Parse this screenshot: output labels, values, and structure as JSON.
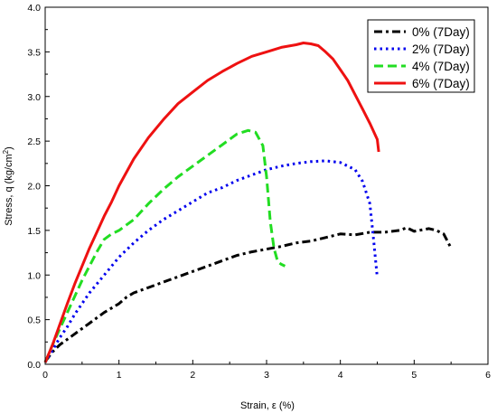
{
  "chart_data": {
    "type": "line",
    "xlabel": "Strain, ε (%)",
    "ylabel_main": "Stress, q (kg/cm",
    "ylabel_sup": "2",
    "ylabel_tail": ")",
    "xlim": [
      0,
      6
    ],
    "ylim": [
      0,
      4.0
    ],
    "x_ticks": [
      0,
      1,
      2,
      3,
      4,
      5,
      6
    ],
    "x_tick_labels": [
      "0",
      "1",
      "2",
      "3",
      "4",
      "5",
      "6"
    ],
    "y_ticks": [
      0,
      0.5,
      1.0,
      1.5,
      2.0,
      2.5,
      3.0,
      3.5,
      4.0
    ],
    "y_tick_labels": [
      "0.0",
      "0.5",
      "1.0",
      "1.5",
      "2.0",
      "2.5",
      "3.0",
      "3.5",
      "4.0"
    ],
    "grid": false,
    "legend_position": "top-right",
    "series": [
      {
        "name": "0% (7Day)",
        "color": "#000000",
        "style": "dash-dot",
        "x": [
          0,
          0.1,
          0.2,
          0.3,
          0.4,
          0.5,
          0.6,
          0.7,
          0.8,
          0.9,
          1.0,
          1.1,
          1.2,
          1.4,
          1.6,
          1.8,
          2.0,
          2.2,
          2.4,
          2.6,
          2.8,
          3.0,
          3.2,
          3.4,
          3.6,
          3.8,
          4.0,
          4.2,
          4.4,
          4.6,
          4.8,
          4.9,
          5.0,
          5.2,
          5.3,
          5.4,
          5.5
        ],
        "y": [
          0.03,
          0.14,
          0.22,
          0.28,
          0.34,
          0.4,
          0.46,
          0.52,
          0.58,
          0.63,
          0.68,
          0.75,
          0.8,
          0.86,
          0.92,
          0.98,
          1.04,
          1.1,
          1.16,
          1.22,
          1.26,
          1.29,
          1.32,
          1.36,
          1.38,
          1.42,
          1.46,
          1.45,
          1.48,
          1.48,
          1.5,
          1.53,
          1.49,
          1.52,
          1.5,
          1.46,
          1.3
        ]
      },
      {
        "name": "2% (7Day)",
        "color": "#0000ee",
        "style": "dotted",
        "x": [
          0,
          0.1,
          0.2,
          0.3,
          0.4,
          0.5,
          0.6,
          0.7,
          0.8,
          0.9,
          1.0,
          1.1,
          1.2,
          1.4,
          1.6,
          1.8,
          2.0,
          2.2,
          2.4,
          2.6,
          2.8,
          3.0,
          3.2,
          3.4,
          3.6,
          3.8,
          4.0,
          4.2,
          4.3,
          4.4,
          4.45,
          4.5
        ],
        "y": [
          0.02,
          0.16,
          0.3,
          0.42,
          0.56,
          0.68,
          0.8,
          0.9,
          1.0,
          1.1,
          1.2,
          1.28,
          1.36,
          1.5,
          1.62,
          1.72,
          1.82,
          1.92,
          1.98,
          2.06,
          2.12,
          2.18,
          2.22,
          2.25,
          2.27,
          2.28,
          2.26,
          2.18,
          2.05,
          1.8,
          1.4,
          0.97
        ]
      },
      {
        "name": "4% (7Day)",
        "color": "#22dd22",
        "style": "dashed",
        "x": [
          0,
          0.1,
          0.2,
          0.3,
          0.4,
          0.5,
          0.6,
          0.7,
          0.8,
          0.9,
          1.0,
          1.1,
          1.2,
          1.4,
          1.6,
          1.8,
          2.0,
          2.2,
          2.4,
          2.6,
          2.75,
          2.85,
          2.95,
          3.0,
          3.05,
          3.1,
          3.15,
          3.2,
          3.25
        ],
        "y": [
          0.02,
          0.22,
          0.4,
          0.58,
          0.76,
          0.94,
          1.1,
          1.26,
          1.4,
          1.46,
          1.5,
          1.56,
          1.62,
          1.8,
          1.96,
          2.1,
          2.22,
          2.34,
          2.46,
          2.58,
          2.62,
          2.6,
          2.45,
          2.1,
          1.6,
          1.3,
          1.15,
          1.12,
          1.1
        ]
      },
      {
        "name": "6% (7Day)",
        "color": "#ee1111",
        "style": "solid",
        "x": [
          0,
          0.1,
          0.2,
          0.3,
          0.4,
          0.5,
          0.6,
          0.7,
          0.8,
          0.9,
          1.0,
          1.2,
          1.4,
          1.6,
          1.8,
          2.0,
          2.2,
          2.4,
          2.6,
          2.8,
          3.0,
          3.2,
          3.4,
          3.5,
          3.6,
          3.7,
          3.8,
          3.9,
          4.0,
          4.1,
          4.2,
          4.3,
          4.4,
          4.5,
          4.52
        ],
        "y": [
          0.02,
          0.22,
          0.45,
          0.68,
          0.9,
          1.1,
          1.3,
          1.48,
          1.66,
          1.82,
          2.0,
          2.3,
          2.54,
          2.74,
          2.92,
          3.05,
          3.18,
          3.28,
          3.37,
          3.45,
          3.5,
          3.55,
          3.58,
          3.6,
          3.59,
          3.57,
          3.5,
          3.42,
          3.3,
          3.18,
          3.02,
          2.86,
          2.7,
          2.52,
          2.38
        ]
      }
    ]
  }
}
